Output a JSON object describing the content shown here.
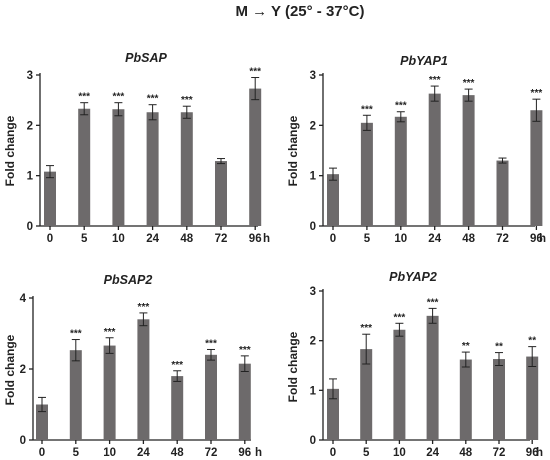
{
  "figure_title": "M → Y (25° - 37°C)",
  "x_unit": "h",
  "chart_data": [
    {
      "type": "bar",
      "title": "PbSAP",
      "ylabel": "Fold change",
      "categories": [
        "0",
        "5",
        "10",
        "24",
        "48",
        "72",
        "96"
      ],
      "values": [
        1.08,
        2.33,
        2.32,
        2.26,
        2.26,
        1.29,
        2.73
      ],
      "errors": [
        0.12,
        0.12,
        0.13,
        0.15,
        0.12,
        0.05,
        0.22
      ],
      "significance": [
        "",
        "***",
        "***",
        "***",
        "***",
        "",
        "***"
      ],
      "yticks": [
        0,
        1,
        2,
        3
      ],
      "ylim": [
        0,
        3
      ]
    },
    {
      "type": "bar",
      "title": "PbYAP1",
      "ylabel": "Fold change",
      "categories": [
        "0",
        "5",
        "10",
        "24",
        "48",
        "72",
        "96"
      ],
      "values": [
        1.03,
        2.05,
        2.17,
        2.63,
        2.6,
        1.3,
        2.3
      ],
      "errors": [
        0.12,
        0.15,
        0.1,
        0.15,
        0.12,
        0.05,
        0.22
      ],
      "significance": [
        "",
        "***",
        "***",
        "***",
        "***",
        "",
        "***"
      ],
      "yticks": [
        0,
        1,
        2,
        3
      ],
      "ylim": [
        0,
        3
      ]
    },
    {
      "type": "bar",
      "title": "PbSAP2",
      "ylabel": "Fold change",
      "categories": [
        "0",
        "5",
        "10",
        "24",
        "48",
        "72",
        "96"
      ],
      "values": [
        1.0,
        2.53,
        2.66,
        3.4,
        1.8,
        2.4,
        2.15
      ],
      "errors": [
        0.2,
        0.3,
        0.22,
        0.18,
        0.15,
        0.15,
        0.22
      ],
      "significance": [
        "",
        "***",
        "***",
        "***",
        "***",
        "***",
        "***"
      ],
      "yticks": [
        0,
        2,
        4
      ],
      "ylim": [
        0,
        4
      ]
    },
    {
      "type": "bar",
      "title": "PbYAP2",
      "ylabel": "Fold change",
      "categories": [
        "0",
        "5",
        "10",
        "24",
        "48",
        "72",
        "96"
      ],
      "values": [
        1.03,
        1.83,
        2.22,
        2.5,
        1.62,
        1.63,
        1.68
      ],
      "errors": [
        0.2,
        0.3,
        0.13,
        0.15,
        0.15,
        0.13,
        0.2
      ],
      "significance": [
        "",
        "***",
        "***",
        "***",
        "**",
        "**",
        "**"
      ],
      "yticks": [
        0,
        1,
        2,
        3
      ],
      "ylim": [
        0,
        3
      ]
    }
  ],
  "colors": {
    "bar": "#6d6a6b",
    "axis": "#222222"
  }
}
